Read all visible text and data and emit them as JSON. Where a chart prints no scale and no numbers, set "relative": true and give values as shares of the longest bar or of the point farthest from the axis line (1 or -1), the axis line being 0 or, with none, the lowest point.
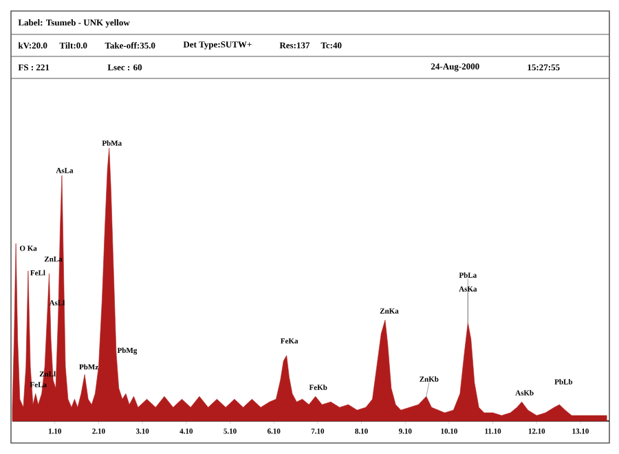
{
  "chart_data": {
    "type": "area",
    "relative": true,
    "tick_labels": "x",
    "grid": false,
    "xlim": [
      0.13,
      13.76
    ],
    "xticks": [
      {
        "value": 1.1,
        "label": "1.10"
      },
      {
        "value": 2.1,
        "label": "2.10"
      },
      {
        "value": 3.1,
        "label": "3.10"
      },
      {
        "value": 4.1,
        "label": "4.10"
      },
      {
        "value": 5.1,
        "label": "5.10"
      },
      {
        "value": 6.1,
        "label": "6.10"
      },
      {
        "value": 7.1,
        "label": "7.10"
      },
      {
        "value": 8.1,
        "label": "8.10"
      },
      {
        "value": 9.1,
        "label": "9.10"
      },
      {
        "value": 10.1,
        "label": "10.10"
      },
      {
        "value": 11.1,
        "label": "11.10"
      },
      {
        "value": 12.1,
        "label": "12.10"
      },
      {
        "value": 13.1,
        "label": "13.10"
      }
    ],
    "series": [
      {
        "color": "#b01c1c",
        "x": [
          0.13,
          0.17,
          0.21,
          0.25,
          0.3,
          0.38,
          0.44,
          0.49,
          0.54,
          0.6,
          0.66,
          0.72,
          0.8,
          0.87,
          0.93,
          0.97,
          1.01,
          1.06,
          1.12,
          1.18,
          1.22,
          1.26,
          1.3,
          1.34,
          1.4,
          1.48,
          1.55,
          1.62,
          1.7,
          1.78,
          1.86,
          1.94,
          2.02,
          2.1,
          2.18,
          2.24,
          2.3,
          2.34,
          2.38,
          2.44,
          2.5,
          2.56,
          2.64,
          2.72,
          2.8,
          2.9,
          3.0,
          3.2,
          3.4,
          3.6,
          3.8,
          4.0,
          4.2,
          4.4,
          4.6,
          4.8,
          5.0,
          5.2,
          5.4,
          5.6,
          5.8,
          6.0,
          6.15,
          6.25,
          6.32,
          6.39,
          6.45,
          6.52,
          6.62,
          6.75,
          6.9,
          7.05,
          7.2,
          7.4,
          7.6,
          7.8,
          8.0,
          8.2,
          8.35,
          8.45,
          8.55,
          8.64,
          8.7,
          8.78,
          8.88,
          9.0,
          9.2,
          9.4,
          9.58,
          9.7,
          9.85,
          10.0,
          10.2,
          10.35,
          10.45,
          10.53,
          10.6,
          10.68,
          10.78,
          10.9,
          11.1,
          11.3,
          11.5,
          11.65,
          11.76,
          11.9,
          12.1,
          12.3,
          12.5,
          12.62,
          12.75,
          12.9,
          13.1,
          13.3,
          13.5,
          13.7
        ],
        "values": [
          0.05,
          0.3,
          0.65,
          0.3,
          0.08,
          0.05,
          0.2,
          0.55,
          0.2,
          0.06,
          0.1,
          0.06,
          0.1,
          0.2,
          0.4,
          0.54,
          0.3,
          0.15,
          0.12,
          0.4,
          0.7,
          0.9,
          0.55,
          0.2,
          0.08,
          0.05,
          0.08,
          0.05,
          0.1,
          0.17,
          0.08,
          0.06,
          0.1,
          0.2,
          0.45,
          0.7,
          0.92,
          1.0,
          0.85,
          0.55,
          0.25,
          0.12,
          0.08,
          0.1,
          0.06,
          0.09,
          0.05,
          0.08,
          0.05,
          0.09,
          0.05,
          0.08,
          0.05,
          0.09,
          0.05,
          0.08,
          0.05,
          0.08,
          0.05,
          0.08,
          0.05,
          0.07,
          0.08,
          0.15,
          0.22,
          0.24,
          0.16,
          0.1,
          0.07,
          0.08,
          0.06,
          0.09,
          0.06,
          0.07,
          0.05,
          0.06,
          0.04,
          0.05,
          0.08,
          0.2,
          0.32,
          0.37,
          0.28,
          0.12,
          0.06,
          0.04,
          0.05,
          0.06,
          0.09,
          0.05,
          0.04,
          0.03,
          0.04,
          0.1,
          0.25,
          0.36,
          0.3,
          0.14,
          0.05,
          0.03,
          0.03,
          0.02,
          0.03,
          0.05,
          0.07,
          0.04,
          0.02,
          0.03,
          0.05,
          0.06,
          0.04,
          0.02,
          0.02,
          0.02,
          0.02,
          0.02
        ]
      }
    ],
    "annotations": [
      "Label: Tsumeb - UNK yellow",
      "kV:20.0",
      "Tilt:0.0",
      "Take-off:35.0",
      "Det Type:SUTW+",
      "Res:137",
      "Tc:40",
      "FS : 221",
      "Lsec : 60",
      "24-Aug-2000",
      "15:27:55",
      {
        "text": "O Ka",
        "x": 0.21,
        "y": 0.65
      },
      {
        "text": "FeLl",
        "x": 0.49,
        "y": 0.55
      },
      {
        "text": "ZnLa",
        "x": 0.97,
        "y": 0.54
      },
      {
        "text": "AsLa",
        "x": 1.26,
        "y": 0.9
      },
      {
        "text": "AsLl",
        "x": 1.18,
        "y": 0.4
      },
      {
        "text": "PbMa",
        "x": 2.34,
        "y": 1.0
      },
      {
        "text": "PbMg",
        "x": 2.5,
        "y": 0.25
      },
      {
        "text": "PbMz",
        "x": 1.78,
        "y": 0.17
      },
      {
        "text": "ZnLl",
        "x": 0.87,
        "y": 0.2
      },
      {
        "text": "FeLa",
        "x": 0.66,
        "y": 0.1
      },
      {
        "text": "FeKa",
        "x": 6.39,
        "y": 0.24
      },
      {
        "text": "FeKb",
        "x": 7.05,
        "y": 0.09
      },
      {
        "text": "ZnKa",
        "x": 8.64,
        "y": 0.37
      },
      {
        "text": "ZnKb",
        "x": 9.58,
        "y": 0.09
      },
      {
        "text": "PbLa",
        "x": 10.53,
        "y": 0.36
      },
      {
        "text": "AsKa",
        "x": 10.53,
        "y": 0.36
      },
      {
        "text": "AsKb",
        "x": 11.76,
        "y": 0.07
      },
      {
        "text": "PbLb",
        "x": 12.62,
        "y": 0.06
      }
    ]
  }
}
